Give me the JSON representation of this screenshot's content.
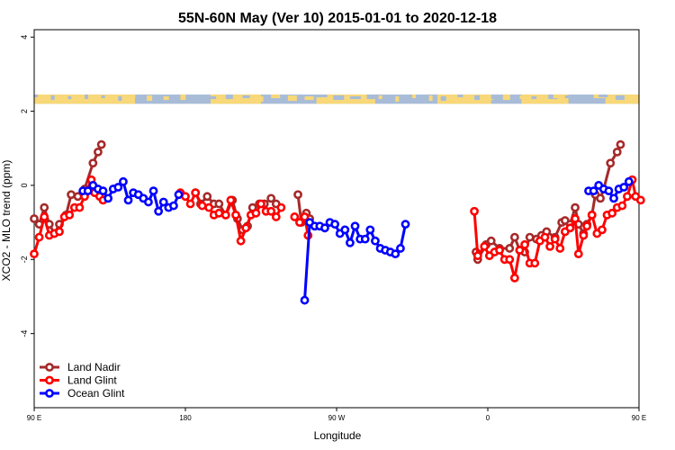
{
  "chart_data": {
    "type": "line",
    "title": "55N-60N May (Ver 10)   2015-01-01 to 2020-12-18",
    "xlabel": "Longitude",
    "ylabel": "XCO2 - MLO trend (ppm)",
    "xlim": [
      90,
      450
    ],
    "ylim": [
      -6,
      4.2
    ],
    "x_ticks": [
      {
        "value": 90,
        "label": "90 E"
      },
      {
        "value": 180,
        "label": "180"
      },
      {
        "value": 270,
        "label": "90 W"
      },
      {
        "value": 360,
        "label": "0"
      },
      {
        "value": 450,
        "label": "90 E"
      },
      {
        "value": 540,
        "label": "180"
      }
    ],
    "y_ticks": [
      -4,
      -2,
      0,
      2,
      4
    ],
    "grid": false,
    "legend_position": "bottom-left",
    "map_strip": {
      "y_bottom": 2.2,
      "y_top": 2.45,
      "land_color": "#F8D878",
      "ocean_color": "#A8BCD8"
    },
    "series": [
      {
        "name": "Land Nadir",
        "color": "#A52A2A",
        "points": [
          [
            90,
            -0.9
          ],
          [
            93,
            -1.05
          ],
          [
            96,
            -0.6
          ],
          [
            99,
            -1.05
          ],
          [
            102,
            -1.3
          ],
          [
            105,
            -1.05
          ],
          [
            109,
            -0.8
          ],
          [
            112,
            -0.25
          ],
          [
            116,
            -0.3
          ],
          [
            120,
            -0.1
          ],
          [
            125,
            0.6
          ],
          [
            128,
            0.9
          ],
          [
            130,
            1.1
          ],
          null,
          [
            186,
            -0.2
          ],
          [
            189,
            -0.5
          ],
          [
            193,
            -0.3
          ],
          [
            197,
            -0.5
          ],
          [
            200,
            -0.5
          ],
          [
            204,
            -0.8
          ],
          [
            208,
            -0.4
          ],
          [
            211,
            -0.9
          ],
          [
            214,
            -1.2
          ],
          [
            217,
            -1.1
          ],
          [
            220,
            -0.6
          ],
          [
            224,
            -0.5
          ],
          [
            227,
            -0.5
          ],
          [
            231,
            -0.35
          ],
          [
            234,
            -0.5
          ],
          null,
          [
            247,
            -0.25
          ],
          [
            249,
            -1.0
          ],
          [
            252,
            -0.75
          ],
          [
            254,
            -0.9
          ],
          null,
          [
            353,
            -1.8
          ],
          [
            354,
            -2.0
          ],
          [
            359,
            -1.6
          ],
          [
            362,
            -1.5
          ],
          [
            367,
            -1.7
          ],
          [
            373,
            -1.7
          ],
          [
            376,
            -1.4
          ],
          [
            379,
            -1.75
          ],
          [
            382,
            -1.8
          ],
          [
            385,
            -1.4
          ],
          [
            389,
            -1.45
          ],
          [
            392,
            -1.35
          ],
          [
            395,
            -1.25
          ],
          [
            400,
            -1.4
          ],
          [
            404,
            -1.0
          ],
          [
            406,
            -0.95
          ],
          [
            409,
            -1.05
          ],
          [
            412,
            -0.6
          ],
          [
            414,
            -1.05
          ],
          [
            417,
            -1.3
          ],
          [
            419,
            -1.05
          ],
          [
            422,
            -0.8
          ],
          [
            424,
            -0.25
          ],
          [
            427,
            -0.35
          ],
          [
            429,
            -0.1
          ],
          [
            433,
            0.6
          ],
          [
            437,
            0.9
          ],
          [
            439,
            1.1
          ]
        ]
      },
      {
        "name": "Land Glint",
        "color": "#FF0000",
        "points": [
          [
            90,
            -1.85
          ],
          [
            93,
            -1.4
          ],
          [
            96,
            -0.85
          ],
          [
            99,
            -1.35
          ],
          [
            102,
            -1.3
          ],
          [
            105,
            -1.25
          ],
          [
            108,
            -0.85
          ],
          [
            111,
            -0.8
          ],
          [
            114,
            -0.6
          ],
          [
            117,
            -0.6
          ],
          [
            120,
            -0.3
          ],
          [
            124,
            0.15
          ],
          [
            126,
            -0.2
          ],
          [
            129,
            -0.3
          ],
          [
            131,
            -0.4
          ],
          null,
          [
            177,
            -0.2
          ],
          [
            180,
            -0.3
          ],
          [
            183,
            -0.5
          ],
          [
            186,
            -0.2
          ],
          [
            190,
            -0.55
          ],
          [
            194,
            -0.6
          ],
          [
            197,
            -0.8
          ],
          [
            200,
            -0.75
          ],
          [
            204,
            -0.8
          ],
          [
            207,
            -0.4
          ],
          [
            210,
            -0.8
          ],
          [
            213,
            -1.5
          ],
          [
            216,
            -1.15
          ],
          [
            219,
            -0.8
          ],
          [
            222,
            -0.75
          ],
          [
            225,
            -0.5
          ],
          [
            228,
            -0.7
          ],
          [
            231,
            -0.7
          ],
          [
            234,
            -0.85
          ],
          [
            237,
            -0.6
          ],
          null,
          [
            245,
            -0.85
          ],
          [
            248,
            -1.0
          ],
          [
            251,
            -0.85
          ],
          [
            253,
            -1.35
          ],
          null,
          [
            352,
            -0.7
          ],
          [
            354,
            -1.9
          ],
          [
            358,
            -1.65
          ],
          [
            361,
            -1.9
          ],
          [
            364,
            -1.8
          ],
          [
            367,
            -1.75
          ],
          [
            370,
            -2.0
          ],
          [
            373,
            -2.0
          ],
          [
            376,
            -2.5
          ],
          [
            379,
            -1.75
          ],
          [
            382,
            -1.6
          ],
          [
            385,
            -2.1
          ],
          [
            388,
            -2.1
          ],
          [
            391,
            -1.5
          ],
          [
            394,
            -1.4
          ],
          [
            397,
            -1.65
          ],
          [
            400,
            -1.45
          ],
          [
            403,
            -1.7
          ],
          [
            406,
            -1.25
          ],
          [
            409,
            -1.15
          ],
          [
            412,
            -0.9
          ],
          [
            414,
            -1.85
          ],
          [
            417,
            -1.35
          ],
          [
            419,
            -1.1
          ],
          [
            422,
            -0.8
          ],
          [
            425,
            -1.3
          ],
          [
            428,
            -1.2
          ],
          [
            431,
            -0.8
          ],
          [
            434,
            -0.75
          ],
          [
            437,
            -0.6
          ],
          [
            440,
            -0.55
          ],
          [
            443,
            -0.3
          ],
          [
            446,
            0.15
          ],
          [
            448,
            -0.3
          ],
          [
            451,
            -0.4
          ]
        ]
      },
      {
        "name": "Ocean Glint",
        "color": "#0000FF",
        "points": [
          [
            119,
            -0.15
          ],
          [
            122,
            -0.15
          ],
          [
            125,
            0.0
          ],
          [
            128,
            -0.1
          ],
          [
            131,
            -0.15
          ],
          [
            134,
            -0.35
          ],
          [
            137,
            -0.1
          ],
          [
            140,
            -0.05
          ],
          [
            143,
            0.1
          ],
          [
            146,
            -0.4
          ],
          [
            149,
            -0.2
          ],
          [
            152,
            -0.25
          ],
          [
            155,
            -0.35
          ],
          [
            158,
            -0.45
          ],
          [
            161,
            -0.15
          ],
          [
            164,
            -0.7
          ],
          [
            167,
            -0.45
          ],
          [
            170,
            -0.6
          ],
          [
            173,
            -0.55
          ],
          [
            176,
            -0.25
          ],
          null,
          [
            251,
            -3.1
          ],
          [
            254,
            -1.0
          ],
          [
            257,
            -1.1
          ],
          [
            260,
            -1.1
          ],
          [
            263,
            -1.15
          ],
          [
            266,
            -1.0
          ],
          [
            269,
            -1.05
          ],
          [
            272,
            -1.3
          ],
          [
            275,
            -1.2
          ],
          [
            278,
            -1.55
          ],
          [
            281,
            -1.1
          ],
          [
            284,
            -1.45
          ],
          [
            287,
            -1.45
          ],
          [
            290,
            -1.2
          ],
          [
            293,
            -1.5
          ],
          [
            296,
            -1.7
          ],
          [
            299,
            -1.75
          ],
          [
            302,
            -1.8
          ],
          [
            305,
            -1.85
          ],
          [
            308,
            -1.7
          ],
          [
            311,
            -1.05
          ],
          null,
          [
            420,
            -0.15
          ],
          [
            423,
            -0.15
          ],
          [
            426,
            0.0
          ],
          [
            429,
            -0.1
          ],
          [
            432,
            -0.15
          ],
          [
            435,
            -0.35
          ],
          [
            438,
            -0.1
          ],
          [
            441,
            -0.05
          ],
          [
            444,
            0.1
          ]
        ]
      }
    ]
  }
}
